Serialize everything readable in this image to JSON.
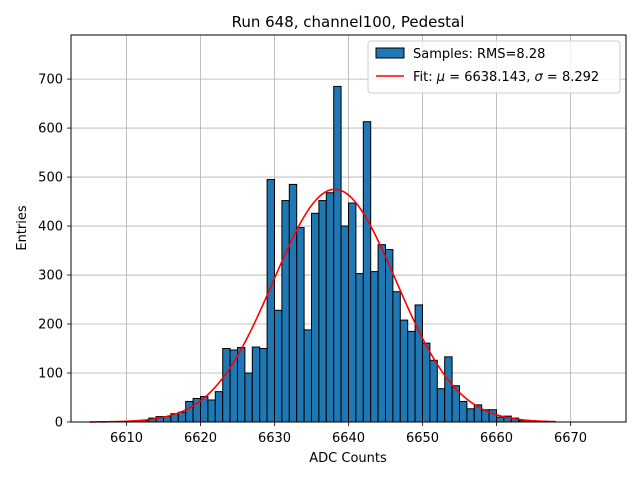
{
  "chart_data": {
    "type": "bar",
    "title": "Run 648, channel100, Pedestal",
    "xlabel": "ADC Counts",
    "ylabel": "Entries",
    "xlim": [
      6602.5,
      6677.5
    ],
    "ylim": [
      0,
      790
    ],
    "xticks": [
      6610,
      6620,
      6630,
      6640,
      6650,
      6660,
      6670
    ],
    "yticks": [
      0,
      100,
      200,
      300,
      400,
      500,
      600,
      700
    ],
    "grid": true,
    "legend_position": "top-right",
    "histogram": {
      "name": "Samples: RMS=8.28",
      "color": "#1f77b4",
      "edge_color": "#000000",
      "bin_width": 1,
      "bin_starts": [
        6605,
        6606,
        6607,
        6608,
        6609,
        6610,
        6611,
        6612,
        6613,
        6614,
        6615,
        6616,
        6617,
        6618,
        6619,
        6620,
        6621,
        6622,
        6623,
        6624,
        6625,
        6626,
        6627,
        6628,
        6629,
        6630,
        6631,
        6632,
        6633,
        6634,
        6635,
        6636,
        6637,
        6638,
        6639,
        6640,
        6641,
        6642,
        6643,
        6644,
        6645,
        6646,
        6647,
        6648,
        6649,
        6650,
        6651,
        6652,
        6653,
        6654,
        6655,
        6656,
        6657,
        6658,
        6659,
        6660,
        6661,
        6662,
        6663,
        6664,
        6665,
        6666,
        6667
      ],
      "counts": [
        0,
        0,
        0,
        0,
        0,
        0,
        1,
        3,
        8,
        11,
        11,
        17,
        20,
        42,
        48,
        52,
        45,
        62,
        150,
        147,
        152,
        100,
        153,
        150,
        495,
        228,
        452,
        485,
        397,
        188,
        426,
        452,
        468,
        685,
        400,
        447,
        303,
        613,
        307,
        362,
        352,
        266,
        208,
        185,
        239,
        161,
        126,
        68,
        133,
        74,
        42,
        27,
        35,
        25,
        25,
        10,
        12,
        8,
        3,
        2,
        1,
        0,
        0
      ]
    },
    "fit": {
      "name_prefix": "Fit: ",
      "mu_symbol": "μ",
      "sigma_symbol": "σ",
      "mu": 6638.143,
      "sigma": 8.292,
      "mu_text": "6638.143",
      "sigma_text": "8.292",
      "amplitude": 475,
      "x_range": [
        6605,
        6668
      ],
      "color": "#ff0000"
    }
  }
}
